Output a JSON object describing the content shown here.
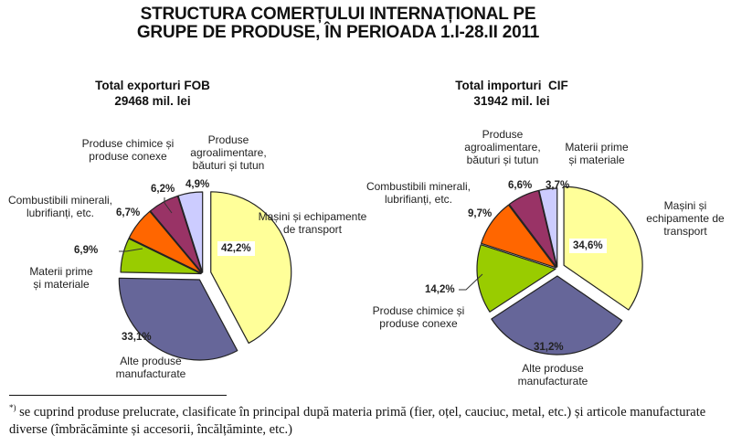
{
  "title": {
    "line1": "STRUCTURA COMERȚULUI INTERNAȚIONAL PE",
    "line2": "GRUPE DE PRODUSE, ÎN PERIOADA 1.I-28.II 2011"
  },
  "exports": {
    "heading": "Total exporturi FOB",
    "total": "29468 mil. lei",
    "labels": {
      "masini": [
        "Mașini și echipamente",
        "de transport"
      ],
      "alte": [
        "Alte produse",
        "manufacturate"
      ],
      "materii": [
        "Materii prime",
        "și materiale"
      ],
      "combustibili": [
        "Combustibili minerali,",
        "lubrifianți, etc."
      ],
      "chimice": [
        "Produse chimice și",
        "produse conexe"
      ],
      "agro": [
        "Produse",
        "agroalimentare,",
        "băuturi și tutun"
      ]
    },
    "pcts": {
      "masini": "42,2%",
      "alte": "33,1%",
      "materii": "6,9%",
      "combustibili": "6,7%",
      "chimice": "6,2%",
      "agro": "4,9%"
    }
  },
  "imports": {
    "heading": "Total importuri  CIF",
    "total": "31942 mil. lei",
    "labels": {
      "masini": [
        "Mașini și",
        "echipamente de",
        "transport"
      ],
      "alte": [
        "Alte produse",
        "manufacturate"
      ],
      "chimice": [
        "Produse chimice și",
        "produse conexe"
      ],
      "combustibili": [
        "Combustibili minerali,",
        "lubrifianți, etc."
      ],
      "agro": [
        "Produse",
        "agroalimentare,",
        "băuturi și tutun"
      ],
      "materii": [
        "Materii prime",
        "și materiale"
      ]
    },
    "pcts": {
      "masini": "34,6%",
      "alte": "31,2%",
      "chimice": "14,2%",
      "combustibili": "9,7%",
      "agro": "6,6%",
      "materii": "3,7%"
    }
  },
  "footnote": {
    "marker": "*)",
    "text": " se cuprind produse prelucrate, clasificate în principal după materia primă (fier, oțel, cauciuc, metal, etc.) și articole manufacturate diverse (îmbrăcăminte și accesorii, încălțăminte, etc.)"
  },
  "colors": {
    "yellow": "#FFFF99",
    "blue": "#666699",
    "green": "#99CC00",
    "orange": "#FF6600",
    "maroon": "#993366",
    "lavender": "#CCCCFF",
    "outline": "#222222"
  },
  "chart_data": [
    {
      "type": "pie",
      "title": "Total exporturi FOB",
      "subtitle": "29468 mil. lei",
      "categories": [
        "Mașini și echipamente de transport",
        "Alte produse manufacturate",
        "Materii prime și materiale",
        "Combustibili minerali, lubrifianți, etc.",
        "Produse chimice și produse conexe",
        "Produse agroalimentare, băuturi și tutun"
      ],
      "values": [
        42.2,
        33.1,
        6.9,
        6.7,
        6.2,
        4.9
      ],
      "unit": "%",
      "exploded": [
        "Mașini și echipamente de transport",
        "Alte produse manufacturate"
      ]
    },
    {
      "type": "pie",
      "title": "Total importuri CIF",
      "subtitle": "31942 mil. lei",
      "categories": [
        "Mașini și echipamente de transport",
        "Alte produse manufacturate",
        "Produse chimice și produse conexe",
        "Combustibili minerali, lubrifianți, etc.",
        "Produse agroalimentare, băuturi și tutun",
        "Materii prime și materiale"
      ],
      "values": [
        34.6,
        31.2,
        14.2,
        9.7,
        6.6,
        3.7
      ],
      "unit": "%",
      "exploded": [
        "Mașini și echipamente de transport",
        "Alte produse manufacturate"
      ]
    }
  ]
}
